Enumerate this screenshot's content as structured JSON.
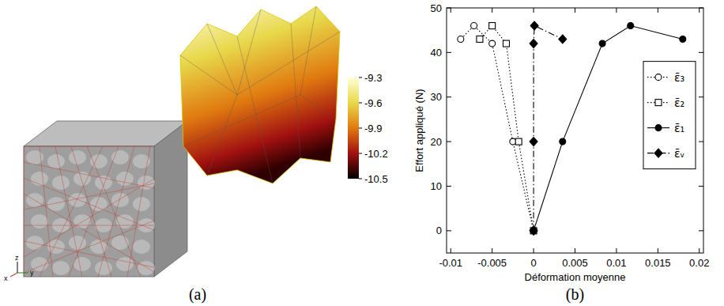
{
  "chart_data": [
    {
      "type": "mesh",
      "title": "(a)",
      "axis_triad": [
        "z",
        "x",
        "y"
      ],
      "colorbar": {
        "range": [
          -10.5,
          -9.3
        ],
        "ticks": [
          -9.3,
          -9.6,
          -9.9,
          -10.2,
          -10.5
        ]
      }
    },
    {
      "type": "line",
      "title": "(b)",
      "x_label": "Déformation moyenne",
      "y_label": "Effort appliqué (N)",
      "xlim": [
        -0.0105,
        0.0205
      ],
      "xticks": [
        -0.01,
        -0.005,
        0,
        0.005,
        0.01,
        0.015,
        0.02
      ],
      "ylim": [
        -5,
        50
      ],
      "yticks": [
        0,
        10,
        20,
        30,
        40,
        50
      ],
      "legend": "right",
      "grid": false,
      "series": [
        {
          "name": "ε̄₃",
          "color": "#000000",
          "marker": "circle-open",
          "line_style": "dotted",
          "x": [
            0,
            -0.0025,
            -0.005,
            -0.0072,
            -0.0088
          ],
          "values": [
            0,
            20,
            42,
            46,
            43
          ]
        },
        {
          "name": "ε̄₂",
          "color": "#000000",
          "marker": "square-open",
          "line_style": "dotted",
          "x": [
            0,
            -0.0018,
            -0.0033,
            -0.005,
            -0.0065
          ],
          "values": [
            0,
            20,
            42,
            46,
            43
          ]
        },
        {
          "name": "ε̄₁",
          "color": "#000000",
          "marker": "circle",
          "line_style": "solid",
          "x": [
            0,
            0.0035,
            0.0083,
            0.0117,
            0.018
          ],
          "values": [
            0,
            20,
            42,
            46,
            43
          ]
        },
        {
          "name": "ε̄ᵥ",
          "color": "#000000",
          "marker": "diamond",
          "line_style": "dashdot",
          "x": [
            0,
            0,
            0,
            0.0001,
            0.0035
          ],
          "values": [
            0,
            20,
            42,
            46,
            43
          ]
        }
      ]
    }
  ]
}
